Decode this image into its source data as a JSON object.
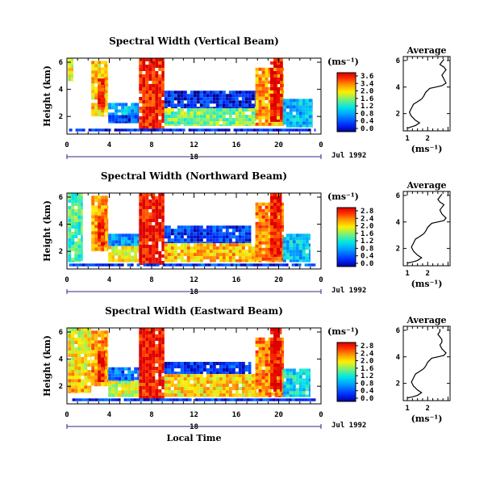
{
  "chart_data": [
    {
      "type": "heatmap",
      "title": "Spectral Width (Vertical Beam)",
      "ylabel": "Height (km)",
      "xlabel": "",
      "x_ticks": [
        "0",
        "4",
        "8",
        "12",
        "16",
        "20",
        "0"
      ],
      "y_ticks": [
        "2",
        "4",
        "6"
      ],
      "date_day": "18",
      "date_label": "Jul 1992",
      "xlim": [
        0,
        24
      ],
      "ylim": [
        0.7,
        6.3
      ],
      "colorbar": {
        "unit": "(ms⁻¹)",
        "ticks": [
          "3.6",
          "3.4",
          "2.0",
          "1.6",
          "1.2",
          "0.8",
          "0.4",
          "0.0"
        ],
        "range": [
          0,
          3.6
        ]
      },
      "regions": [
        {
          "x": [
            0.1,
            0.6
          ],
          "y": [
            4.6,
            6.3
          ],
          "value": 2.4
        },
        {
          "x": [
            2.3,
            3.9
          ],
          "y": [
            2.0,
            6.1
          ],
          "value": 2.6
        },
        {
          "x": [
            2.9,
            3.6
          ],
          "y": [
            2.5,
            4.8
          ],
          "value": 3.3
        },
        {
          "x": [
            3.9,
            6.8
          ],
          "y": [
            2.1,
            3.0
          ],
          "value": 1.2
        },
        {
          "x": [
            3.9,
            6.8
          ],
          "y": [
            1.5,
            2.1
          ],
          "value": 0.6
        },
        {
          "x": [
            6.8,
            9.2
          ],
          "y": [
            1.0,
            6.3
          ],
          "value": 3.4
        },
        {
          "x": [
            9.2,
            17.9
          ],
          "y": [
            2.6,
            3.9
          ],
          "value": 0.4
        },
        {
          "x": [
            9.2,
            17.9
          ],
          "y": [
            1.3,
            2.6
          ],
          "value": 2.0
        },
        {
          "x": [
            17.8,
            20.5
          ],
          "y": [
            1.3,
            5.6
          ],
          "value": 2.8
        },
        {
          "x": [
            19.2,
            20.4
          ],
          "y": [
            1.6,
            6.3
          ],
          "value": 3.5
        },
        {
          "x": [
            20.4,
            23.2
          ],
          "y": [
            1.2,
            3.3
          ],
          "value": 1.2
        },
        {
          "x": [
            0.2,
            23.5
          ],
          "y": [
            0.9,
            1.1
          ],
          "value": 0.4
        }
      ]
    },
    {
      "type": "heatmap",
      "title": "Spectral Width (Northward Beam)",
      "ylabel": "Height (km)",
      "xlabel": "",
      "x_ticks": [
        "0",
        "4",
        "8",
        "12",
        "16",
        "20",
        "0"
      ],
      "y_ticks": [
        "2",
        "4",
        "6"
      ],
      "date_day": "18",
      "date_label": "Jul 1992",
      "xlim": [
        0,
        24
      ],
      "ylim": [
        0.7,
        6.3
      ],
      "colorbar": {
        "unit": "(ms⁻¹)",
        "ticks": [
          "2.8",
          "2.4",
          "2.0",
          "1.6",
          "1.2",
          "0.8",
          "0.4",
          "0.0"
        ],
        "range": [
          0,
          2.8
        ]
      },
      "regions": [
        {
          "x": [
            0.1,
            1.5
          ],
          "y": [
            1.2,
            6.3
          ],
          "value": 1.4
        },
        {
          "x": [
            2.3,
            3.9
          ],
          "y": [
            2.0,
            6.1
          ],
          "value": 2.2
        },
        {
          "x": [
            2.9,
            3.6
          ],
          "y": [
            2.4,
            4.6
          ],
          "value": 2.6
        },
        {
          "x": [
            3.9,
            6.8
          ],
          "y": [
            2.4,
            3.3
          ],
          "value": 0.8
        },
        {
          "x": [
            3.9,
            6.8
          ],
          "y": [
            1.2,
            2.4
          ],
          "value": 1.9
        },
        {
          "x": [
            6.8,
            9.2
          ],
          "y": [
            1.0,
            6.3
          ],
          "value": 2.7
        },
        {
          "x": [
            9.2,
            17.4
          ],
          "y": [
            2.6,
            3.9
          ],
          "value": 0.4
        },
        {
          "x": [
            9.2,
            17.9
          ],
          "y": [
            1.2,
            2.6
          ],
          "value": 2.1
        },
        {
          "x": [
            17.8,
            20.5
          ],
          "y": [
            1.2,
            5.6
          ],
          "value": 2.3
        },
        {
          "x": [
            19.2,
            20.3
          ],
          "y": [
            1.6,
            6.3
          ],
          "value": 2.7
        },
        {
          "x": [
            20.4,
            23.0
          ],
          "y": [
            1.2,
            3.3
          ],
          "value": 1.0
        },
        {
          "x": [
            0.2,
            23.5
          ],
          "y": [
            0.9,
            1.1
          ],
          "value": 0.4
        }
      ]
    },
    {
      "type": "heatmap",
      "title": "Spectral Width (Eastward Beam)",
      "ylabel": "Height (km)",
      "xlabel": "Local Time",
      "x_ticks": [
        "0",
        "4",
        "8",
        "12",
        "16",
        "20",
        "0"
      ],
      "y_ticks": [
        "2",
        "4",
        "6"
      ],
      "date_day": "18",
      "date_label": "Jul 1992",
      "xlim": [
        0,
        24
      ],
      "ylim": [
        0.7,
        6.3
      ],
      "colorbar": {
        "unit": "(ms⁻¹)",
        "ticks": [
          "2.8",
          "2.4",
          "2.0",
          "1.6",
          "1.2",
          "0.8",
          "0.4",
          "0.0"
        ],
        "range": [
          0,
          2.8
        ]
      },
      "regions": [
        {
          "x": [
            0.1,
            2.3
          ],
          "y": [
            3.0,
            6.3
          ],
          "value": 1.9
        },
        {
          "x": [
            0.1,
            2.3
          ],
          "y": [
            1.5,
            3.0
          ],
          "value": 2.1
        },
        {
          "x": [
            2.3,
            3.9
          ],
          "y": [
            2.0,
            6.1
          ],
          "value": 2.2
        },
        {
          "x": [
            2.9,
            3.6
          ],
          "y": [
            2.3,
            4.6
          ],
          "value": 2.6
        },
        {
          "x": [
            3.9,
            6.8
          ],
          "y": [
            2.4,
            3.4
          ],
          "value": 0.6
        },
        {
          "x": [
            3.9,
            6.8
          ],
          "y": [
            1.2,
            2.4
          ],
          "value": 1.8
        },
        {
          "x": [
            6.8,
            9.2
          ],
          "y": [
            1.0,
            6.3
          ],
          "value": 2.7
        },
        {
          "x": [
            9.2,
            17.4
          ],
          "y": [
            2.9,
            3.8
          ],
          "value": 0.4
        },
        {
          "x": [
            9.2,
            17.9
          ],
          "y": [
            1.2,
            2.9
          ],
          "value": 2.0
        },
        {
          "x": [
            17.8,
            20.5
          ],
          "y": [
            1.2,
            5.6
          ],
          "value": 2.3
        },
        {
          "x": [
            19.2,
            20.3
          ],
          "y": [
            1.6,
            6.3
          ],
          "value": 2.7
        },
        {
          "x": [
            20.4,
            23.0
          ],
          "y": [
            1.2,
            3.3
          ],
          "value": 1.1
        },
        {
          "x": [
            0.2,
            23.5
          ],
          "y": [
            0.9,
            1.1
          ],
          "value": 0.4
        }
      ]
    },
    {
      "type": "line",
      "title": "Average",
      "xlabel": "(ms⁻¹)",
      "x_ticks": [
        "1",
        "2"
      ],
      "y_ticks": [
        "2",
        "4",
        "6"
      ],
      "xlim": [
        0.8,
        3.1
      ],
      "ylim": [
        0.7,
        6.3
      ],
      "x": [
        1.0,
        1.2,
        1.4,
        1.6,
        1.4,
        1.2,
        1.1,
        1.2,
        1.3,
        1.5,
        1.6,
        1.7,
        1.8,
        1.9,
        2.1,
        2.4,
        2.7,
        2.9,
        2.8,
        2.7,
        2.8,
        2.9,
        2.8,
        2.6,
        2.7,
        2.8
      ],
      "y": [
        0.9,
        1.0,
        1.1,
        1.3,
        1.5,
        1.8,
        2.1,
        2.4,
        2.7,
        2.9,
        3.0,
        3.1,
        3.3,
        3.6,
        3.9,
        4.0,
        4.1,
        4.3,
        4.6,
        4.9,
        5.1,
        5.3,
        5.5,
        5.7,
        5.9,
        6.1
      ]
    },
    {
      "type": "line",
      "title": "Average",
      "xlabel": "(ms⁻¹)",
      "x_ticks": [
        "1",
        "2"
      ],
      "y_ticks": [
        "2",
        "4",
        "6"
      ],
      "xlim": [
        0.8,
        3.1
      ],
      "ylim": [
        0.7,
        6.3
      ],
      "x": [
        1.0,
        1.3,
        1.5,
        1.7,
        1.5,
        1.3,
        1.2,
        1.3,
        1.4,
        1.6,
        1.7,
        1.8,
        1.9,
        2.0,
        2.2,
        2.5,
        2.8,
        2.9,
        2.7,
        2.6,
        2.7,
        2.8,
        2.6,
        2.5,
        2.6,
        2.7
      ],
      "y": [
        0.9,
        1.0,
        1.1,
        1.3,
        1.5,
        1.8,
        2.1,
        2.4,
        2.7,
        2.9,
        3.0,
        3.1,
        3.3,
        3.6,
        3.9,
        4.0,
        4.1,
        4.3,
        4.6,
        4.9,
        5.1,
        5.3,
        5.5,
        5.7,
        5.9,
        6.1
      ]
    },
    {
      "type": "line",
      "title": "Average",
      "xlabel": "(ms⁻¹)",
      "x_ticks": [
        "1",
        "2"
      ],
      "y_ticks": [
        "2",
        "4",
        "6"
      ],
      "xlim": [
        0.8,
        3.1
      ],
      "ylim": [
        0.7,
        6.3
      ],
      "x": [
        1.0,
        1.3,
        1.5,
        1.7,
        1.5,
        1.3,
        1.2,
        1.3,
        1.4,
        1.6,
        1.7,
        1.8,
        1.9,
        2.0,
        2.2,
        2.5,
        2.8,
        2.9,
        2.7,
        2.6,
        2.7,
        2.7,
        2.6,
        2.5,
        2.6,
        2.6
      ],
      "y": [
        0.9,
        1.0,
        1.1,
        1.3,
        1.5,
        1.8,
        2.1,
        2.4,
        2.7,
        2.9,
        3.0,
        3.1,
        3.3,
        3.6,
        3.9,
        4.0,
        4.1,
        4.3,
        4.6,
        4.9,
        5.1,
        5.3,
        5.5,
        5.7,
        5.9,
        6.1
      ]
    }
  ]
}
